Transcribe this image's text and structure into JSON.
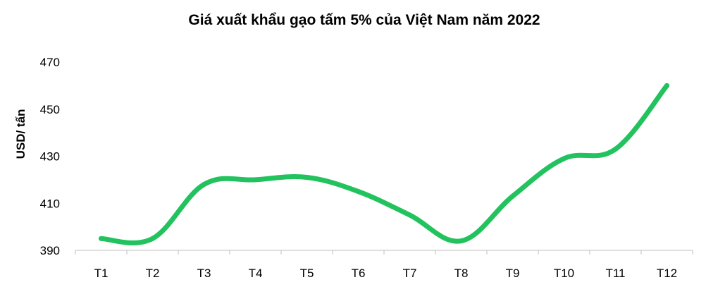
{
  "chart_data": {
    "type": "line",
    "title": "Giá xuất khẩu gạo tấm 5% của Việt Nam năm 2022",
    "xlabel": "",
    "ylabel": "USD/ tấn",
    "categories": [
      "T1",
      "T2",
      "T3",
      "T4",
      "T5",
      "T6",
      "T7",
      "T8",
      "T9",
      "T10",
      "T11",
      "T12"
    ],
    "series": [
      {
        "values": [
          395,
          395,
          418,
          420,
          421,
          415,
          405,
          394,
          413,
          429,
          433,
          460
        ]
      }
    ],
    "ylim": [
      390,
      470
    ],
    "yticks": [
      390,
      410,
      430,
      450,
      470
    ],
    "grid": false,
    "legend": "none",
    "line_color": "#22C35E"
  }
}
